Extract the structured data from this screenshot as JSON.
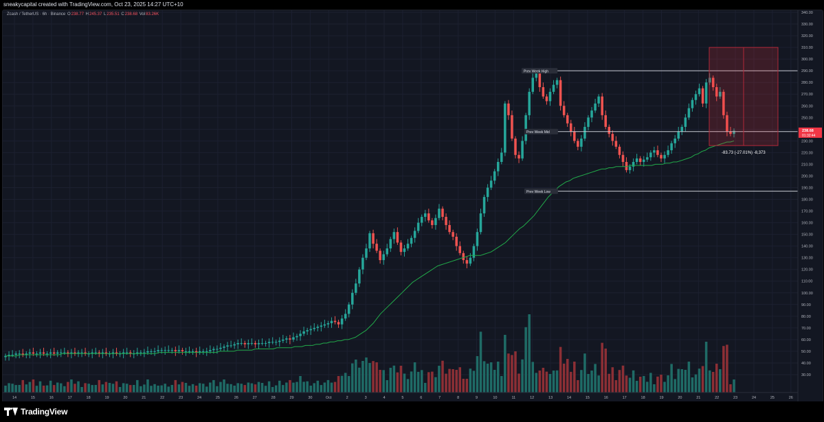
{
  "header": {
    "title": "sneakycapital created with TradingView.com, Oct 23, 2025 14:27 UTC+10"
  },
  "legend": {
    "symbol": "Zcash / TetherUS · 6h · Binance",
    "o_label": "O",
    "o_value": "238.77",
    "h_label": "H",
    "h_value": "245.37",
    "l_label": "L",
    "l_value": "235.51",
    "c_label": "C",
    "c_value": "238.68",
    "vol_label": "Vol",
    "vol_value": "83.26K"
  },
  "branding": {
    "name": "TradingView"
  },
  "colors": {
    "up": "#26a69a",
    "down": "#ef5350",
    "ma": "#22ab4a",
    "up_vol": "#1f6b66",
    "down_vol": "#8c2f35"
  },
  "chart_data": {
    "type": "candlestick",
    "symbol": "ZEC/USDT",
    "timeframe": "6h",
    "ylim": [
      20,
      340
    ],
    "y_ticks": [
      "340.00",
      "330.00",
      "320.00",
      "310.00",
      "300.00",
      "290.00",
      "280.00",
      "270.00",
      "260.00",
      "250.00",
      "240.00",
      "230.00",
      "220.00",
      "210.00",
      "200.00",
      "190.00",
      "180.00",
      "170.00",
      "160.00",
      "150.00",
      "140.00",
      "130.00",
      "120.00",
      "110.00",
      "100.00",
      "90.00",
      "80.00",
      "70.00",
      "60.00",
      "50.00",
      "40.00",
      "30.00"
    ],
    "x_ticks": [
      "14",
      "15",
      "16",
      "17",
      "18",
      "19",
      "20",
      "21",
      "22",
      "23",
      "24",
      "25",
      "26",
      "27",
      "28",
      "29",
      "30",
      "Oct",
      "2",
      "3",
      "4",
      "5",
      "6",
      "7",
      "8",
      "9",
      "10",
      "11",
      "12",
      "13",
      "14",
      "15",
      "16",
      "17",
      "18",
      "19",
      "20",
      "21",
      "22",
      "23",
      "24",
      "25",
      "26"
    ],
    "last_price": "238.68",
    "countdown": "01:32:44",
    "levels": [
      {
        "label": "Prev Week High",
        "value": 290
      },
      {
        "label": "Prev Week Mid",
        "value": 238
      },
      {
        "label": "Prev Week Low",
        "value": 187
      }
    ],
    "measure": {
      "text": "-83.73 (-27.01%) -8,373",
      "from": 310,
      "to": 226
    },
    "closes": [
      46,
      47,
      47,
      48,
      48,
      47,
      48,
      49,
      48,
      48,
      49,
      48,
      48,
      49,
      48,
      49,
      49,
      49,
      48,
      49,
      48,
      49,
      49,
      48,
      48,
      49,
      49,
      48,
      49,
      48,
      48,
      49,
      48,
      48,
      49,
      49,
      48,
      48,
      49,
      49,
      49,
      50,
      50,
      50,
      51,
      51,
      51,
      51,
      51,
      50,
      51,
      50,
      50,
      50,
      50,
      49,
      50,
      50,
      50,
      51,
      52,
      52,
      53,
      54,
      55,
      55,
      56,
      57,
      57,
      56,
      57,
      57,
      56,
      57,
      57,
      57,
      58,
      58,
      58,
      59,
      60,
      61,
      60,
      62,
      63,
      65,
      67,
      68,
      69,
      70,
      71,
      72,
      73,
      74,
      76,
      75,
      73,
      78,
      82,
      90,
      100,
      108,
      120,
      130,
      138,
      151,
      142,
      136,
      128,
      133,
      138,
      146,
      152,
      143,
      135,
      138,
      142,
      147,
      153,
      160,
      165,
      168,
      162,
      158,
      164,
      172,
      165,
      158,
      152,
      148,
      140,
      134,
      128,
      125,
      130,
      140,
      152,
      168,
      182,
      190,
      196,
      204,
      212,
      220,
      262,
      252,
      232,
      218,
      215,
      230,
      252,
      272,
      284,
      288,
      276,
      268,
      264,
      272,
      278,
      282,
      260,
      252,
      245,
      238,
      230,
      225,
      232,
      242,
      250,
      256,
      262,
      268,
      252,
      242,
      236,
      230,
      225,
      218,
      212,
      205,
      208,
      212,
      215,
      212,
      214,
      216,
      220,
      222,
      218,
      215,
      218,
      222,
      228,
      232,
      238,
      242,
      250,
      258,
      265,
      270,
      275,
      262,
      280,
      284,
      276,
      268,
      272,
      252,
      238,
      236,
      238.68
    ],
    "ma_values": [
      46,
      46,
      46,
      46,
      47,
      47,
      47,
      47,
      47,
      47,
      47,
      47,
      47,
      47,
      47,
      47,
      48,
      48,
      48,
      48,
      48,
      48,
      48,
      48,
      48,
      48,
      48,
      48,
      48,
      48,
      48,
      48,
      48,
      48,
      48,
      48,
      48,
      48,
      48,
      48,
      48,
      48,
      48,
      49,
      49,
      49,
      49,
      49,
      49,
      49,
      49,
      49,
      49,
      49,
      49,
      49,
      49,
      49,
      49,
      49,
      50,
      50,
      50,
      50,
      50,
      51,
      51,
      51,
      51,
      51,
      52,
      52,
      52,
      52,
      52,
      52,
      53,
      53,
      53,
      53,
      53,
      54,
      54,
      54,
      55,
      55,
      55,
      56,
      56,
      57,
      57,
      58,
      58,
      59,
      59,
      60,
      60,
      61,
      62,
      64,
      66,
      68,
      71,
      74,
      78,
      82,
      85,
      88,
      91,
      94,
      97,
      100,
      103,
      106,
      109,
      111,
      113,
      115,
      117,
      119,
      121,
      123,
      124,
      125,
      126,
      127,
      128,
      129,
      130,
      131,
      132,
      132,
      132,
      132,
      133,
      134,
      135,
      137,
      139,
      141,
      143,
      146,
      149,
      152,
      155,
      157,
      160,
      163,
      166,
      170,
      174,
      178,
      182,
      185,
      188,
      191,
      193,
      195,
      196,
      198,
      199,
      200,
      201,
      202,
      203,
      204,
      205,
      206,
      206,
      207,
      207,
      208,
      208,
      208,
      208,
      209,
      209,
      209,
      209,
      209,
      209,
      209,
      210,
      210,
      210,
      211,
      211,
      212,
      212,
      213,
      214,
      215,
      216,
      218,
      219,
      221,
      222,
      224,
      225,
      226,
      227,
      228,
      229,
      229,
      230
    ]
  }
}
